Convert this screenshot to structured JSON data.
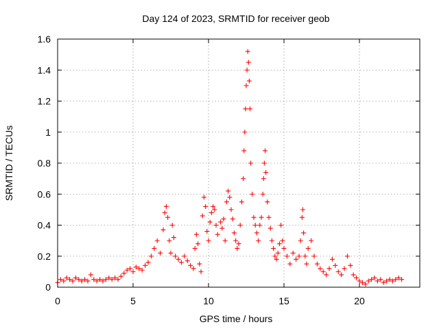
{
  "chart_data": {
    "type": "scatter",
    "title": "Day 124 of 2023, SRMTID for receiver geob",
    "xlabel": "GPS time / hours",
    "ylabel": "SRMTID / TECUs",
    "xlim": [
      0,
      24
    ],
    "ylim": [
      0,
      1.6
    ],
    "x_ticks": [
      0,
      5,
      10,
      15,
      20
    ],
    "x_tick_labels": [
      "0",
      "5",
      "10",
      "15",
      "20"
    ],
    "y_ticks": [
      0,
      0.2,
      0.4,
      0.6,
      0.8,
      1.0,
      1.2,
      1.4,
      1.6
    ],
    "y_tick_labels": [
      "0",
      "0.2",
      "0.4",
      "0.6",
      "0.8",
      "1",
      "1.2",
      "1.4",
      "1.6"
    ],
    "grid": true,
    "marker": "plus",
    "series": [
      {
        "name": "SRMTID",
        "color": "#ff0000",
        "points": [
          [
            0.0,
            0.03
          ],
          [
            0.2,
            0.05
          ],
          [
            0.4,
            0.04
          ],
          [
            0.6,
            0.06
          ],
          [
            0.8,
            0.05
          ],
          [
            1.0,
            0.04
          ],
          [
            1.2,
            0.06
          ],
          [
            1.4,
            0.05
          ],
          [
            1.6,
            0.04
          ],
          [
            1.8,
            0.05
          ],
          [
            2.0,
            0.04
          ],
          [
            2.2,
            0.08
          ],
          [
            2.4,
            0.05
          ],
          [
            2.6,
            0.04
          ],
          [
            2.8,
            0.05
          ],
          [
            3.0,
            0.04
          ],
          [
            3.2,
            0.05
          ],
          [
            3.4,
            0.06
          ],
          [
            3.6,
            0.05
          ],
          [
            3.8,
            0.06
          ],
          [
            4.0,
            0.05
          ],
          [
            4.2,
            0.07
          ],
          [
            4.4,
            0.09
          ],
          [
            4.6,
            0.11
          ],
          [
            4.8,
            0.12
          ],
          [
            5.0,
            0.1
          ],
          [
            5.2,
            0.13
          ],
          [
            5.4,
            0.12
          ],
          [
            5.6,
            0.11
          ],
          [
            5.8,
            0.14
          ],
          [
            6.0,
            0.16
          ],
          [
            6.2,
            0.2
          ],
          [
            6.4,
            0.25
          ],
          [
            6.6,
            0.3
          ],
          [
            6.8,
            0.22
          ],
          [
            7.0,
            0.37
          ],
          [
            7.1,
            0.48
          ],
          [
            7.2,
            0.52
          ],
          [
            7.3,
            0.45
          ],
          [
            7.4,
            0.3
          ],
          [
            7.5,
            0.22
          ],
          [
            7.6,
            0.4
          ],
          [
            7.7,
            0.32
          ],
          [
            7.8,
            0.2
          ],
          [
            8.0,
            0.18
          ],
          [
            8.2,
            0.16
          ],
          [
            8.4,
            0.2
          ],
          [
            8.6,
            0.17
          ],
          [
            8.8,
            0.14
          ],
          [
            9.0,
            0.12
          ],
          [
            9.1,
            0.25
          ],
          [
            9.2,
            0.34
          ],
          [
            9.3,
            0.28
          ],
          [
            9.4,
            0.15
          ],
          [
            9.5,
            0.1
          ],
          [
            9.6,
            0.46
          ],
          [
            9.7,
            0.58
          ],
          [
            9.8,
            0.52
          ],
          [
            9.9,
            0.36
          ],
          [
            10.0,
            0.3
          ],
          [
            10.1,
            0.42
          ],
          [
            10.2,
            0.48
          ],
          [
            10.3,
            0.52
          ],
          [
            10.4,
            0.5
          ],
          [
            10.5,
            0.4
          ],
          [
            10.6,
            0.34
          ],
          [
            10.8,
            0.42
          ],
          [
            10.9,
            0.38
          ],
          [
            11.0,
            0.44
          ],
          [
            11.1,
            0.3
          ],
          [
            11.2,
            0.55
          ],
          [
            11.3,
            0.62
          ],
          [
            11.4,
            0.58
          ],
          [
            11.5,
            0.5
          ],
          [
            11.6,
            0.44
          ],
          [
            11.7,
            0.35
          ],
          [
            11.8,
            0.3
          ],
          [
            11.9,
            0.25
          ],
          [
            12.0,
            0.28
          ],
          [
            12.1,
            0.4
          ],
          [
            12.2,
            0.55
          ],
          [
            12.3,
            0.7
          ],
          [
            12.35,
            0.88
          ],
          [
            12.4,
            1.0
          ],
          [
            12.45,
            1.15
          ],
          [
            12.5,
            1.3
          ],
          [
            12.55,
            1.4
          ],
          [
            12.6,
            1.52
          ],
          [
            12.65,
            1.45
          ],
          [
            12.7,
            1.33
          ],
          [
            12.75,
            1.15
          ],
          [
            12.8,
            0.8
          ],
          [
            12.9,
            0.6
          ],
          [
            13.0,
            0.45
          ],
          [
            13.1,
            0.4
          ],
          [
            13.2,
            0.35
          ],
          [
            13.3,
            0.3
          ],
          [
            13.4,
            0.4
          ],
          [
            13.5,
            0.45
          ],
          [
            13.6,
            0.6
          ],
          [
            13.65,
            0.7
          ],
          [
            13.7,
            0.8
          ],
          [
            13.75,
            0.88
          ],
          [
            13.8,
            0.74
          ],
          [
            13.9,
            0.55
          ],
          [
            14.0,
            0.45
          ],
          [
            14.1,
            0.38
          ],
          [
            14.2,
            0.3
          ],
          [
            14.3,
            0.25
          ],
          [
            14.4,
            0.2
          ],
          [
            14.5,
            0.18
          ],
          [
            14.6,
            0.22
          ],
          [
            14.7,
            0.28
          ],
          [
            14.8,
            0.4
          ],
          [
            14.9,
            0.3
          ],
          [
            15.0,
            0.25
          ],
          [
            15.2,
            0.2
          ],
          [
            15.4,
            0.15
          ],
          [
            15.6,
            0.22
          ],
          [
            15.8,
            0.18
          ],
          [
            16.0,
            0.2
          ],
          [
            16.1,
            0.3
          ],
          [
            16.2,
            0.45
          ],
          [
            16.25,
            0.5
          ],
          [
            16.3,
            0.35
          ],
          [
            16.4,
            0.2
          ],
          [
            16.5,
            0.15
          ],
          [
            16.6,
            0.25
          ],
          [
            16.8,
            0.3
          ],
          [
            17.0,
            0.2
          ],
          [
            17.2,
            0.15
          ],
          [
            17.4,
            0.12
          ],
          [
            17.6,
            0.1
          ],
          [
            17.8,
            0.08
          ],
          [
            18.0,
            0.12
          ],
          [
            18.2,
            0.18
          ],
          [
            18.4,
            0.14
          ],
          [
            18.6,
            0.1
          ],
          [
            18.8,
            0.08
          ],
          [
            19.0,
            0.12
          ],
          [
            19.2,
            0.2
          ],
          [
            19.4,
            0.14
          ],
          [
            19.6,
            0.08
          ],
          [
            19.8,
            0.06
          ],
          [
            20.0,
            0.04
          ],
          [
            20.2,
            0.03
          ],
          [
            20.4,
            0.02
          ],
          [
            20.6,
            0.04
          ],
          [
            20.8,
            0.05
          ],
          [
            21.0,
            0.06
          ],
          [
            21.2,
            0.04
          ],
          [
            21.4,
            0.05
          ],
          [
            21.6,
            0.03
          ],
          [
            21.8,
            0.04
          ],
          [
            22.0,
            0.05
          ],
          [
            22.2,
            0.04
          ],
          [
            22.4,
            0.05
          ],
          [
            22.6,
            0.06
          ],
          [
            22.8,
            0.05
          ]
        ]
      }
    ]
  }
}
